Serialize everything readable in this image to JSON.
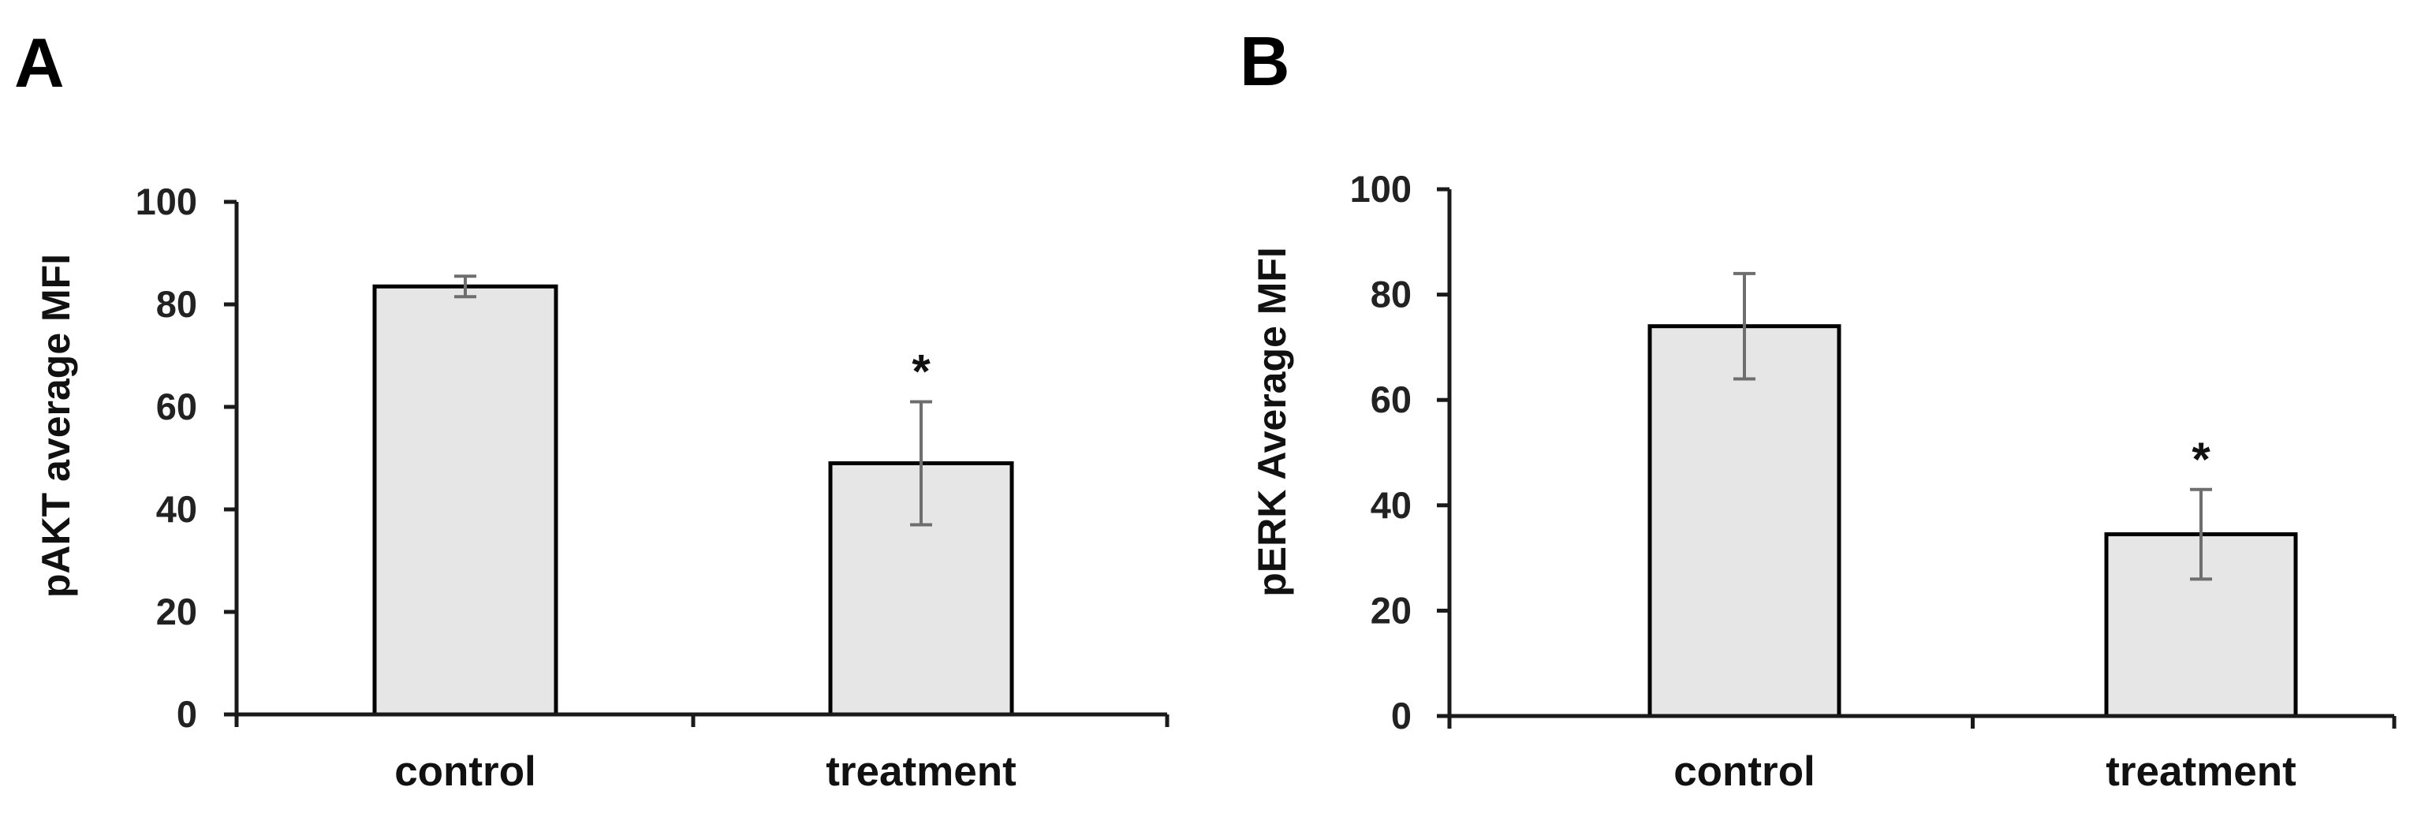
{
  "chart_data": [
    {
      "panel": "A",
      "type": "bar",
      "categories": [
        "control",
        "treatment"
      ],
      "values": [
        83.5,
        49
      ],
      "errors": [
        2,
        12
      ],
      "significance": [
        "",
        "*"
      ],
      "ylabel": "pAKT average MFI",
      "xlabel": "",
      "ylim": [
        0,
        100
      ],
      "yticks": [
        "0",
        "20",
        "40",
        "60",
        "80",
        "100"
      ],
      "colors": {
        "bar_fill": "#e6e6e6",
        "bar_stroke": "#000000",
        "error": "#6e6e6e",
        "axis": "#1a1a1a"
      }
    },
    {
      "panel": "B",
      "type": "bar",
      "categories": [
        "control",
        "treatment"
      ],
      "values": [
        74,
        34.5
      ],
      "errors": [
        10,
        8.5
      ],
      "significance": [
        "",
        "*"
      ],
      "ylabel": "pERK Average MFI",
      "xlabel": "",
      "ylim": [
        0,
        100
      ],
      "yticks": [
        "0",
        "20",
        "40",
        "60",
        "80",
        "100"
      ],
      "colors": {
        "bar_fill": "#e6e6e6",
        "bar_stroke": "#000000",
        "error": "#6e6e6e",
        "axis": "#1a1a1a"
      }
    }
  ]
}
